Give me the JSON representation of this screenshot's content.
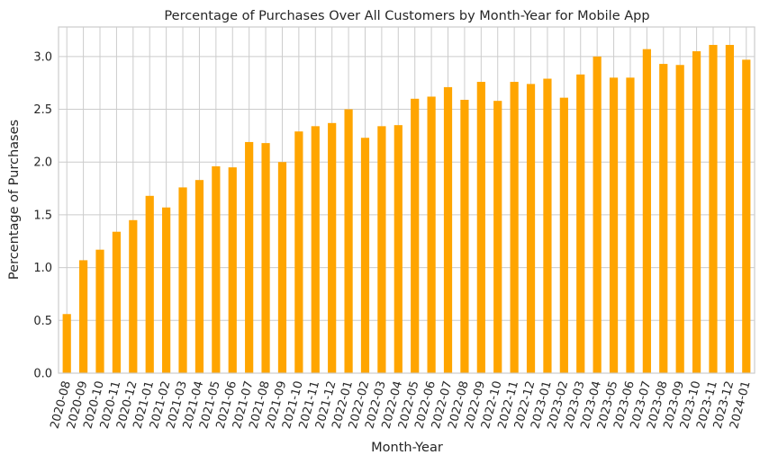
{
  "chart_data": {
    "type": "bar",
    "title": "Percentage of Purchases Over All Customers by Month-Year for Mobile App",
    "xlabel": "Month-Year",
    "ylabel": "Percentage of Purchases",
    "ylim": [
      0,
      3.28
    ],
    "yticks": [
      "0.0",
      "0.5",
      "1.0",
      "1.5",
      "2.0",
      "2.5",
      "3.0"
    ],
    "grid": true,
    "bar_color": "#ffa500",
    "categories": [
      "2020-08",
      "2020-09",
      "2020-10",
      "2020-11",
      "2020-12",
      "2021-01",
      "2021-02",
      "2021-03",
      "2021-04",
      "2021-05",
      "2021-06",
      "2021-07",
      "2021-08",
      "2021-09",
      "2021-10",
      "2021-11",
      "2021-12",
      "2022-01",
      "2022-02",
      "2022-03",
      "2022-04",
      "2022-05",
      "2022-06",
      "2022-07",
      "2022-08",
      "2022-09",
      "2022-10",
      "2022-11",
      "2022-12",
      "2023-01",
      "2023-02",
      "2023-03",
      "2023-04",
      "2023-05",
      "2023-06",
      "2023-07",
      "2023-08",
      "2023-09",
      "2023-10",
      "2023-11",
      "2023-12",
      "2024-01"
    ],
    "values": [
      0.56,
      1.07,
      1.17,
      1.34,
      1.45,
      1.68,
      1.57,
      1.76,
      1.83,
      1.96,
      1.95,
      2.19,
      2.18,
      2.0,
      2.29,
      2.34,
      2.37,
      2.5,
      2.23,
      2.34,
      2.35,
      2.6,
      2.62,
      2.71,
      2.59,
      2.76,
      2.58,
      2.76,
      2.74,
      2.79,
      2.61,
      2.83,
      3.0,
      2.8,
      2.8,
      3.07,
      2.93,
      2.92,
      3.05,
      3.11,
      3.11,
      2.97
    ]
  }
}
